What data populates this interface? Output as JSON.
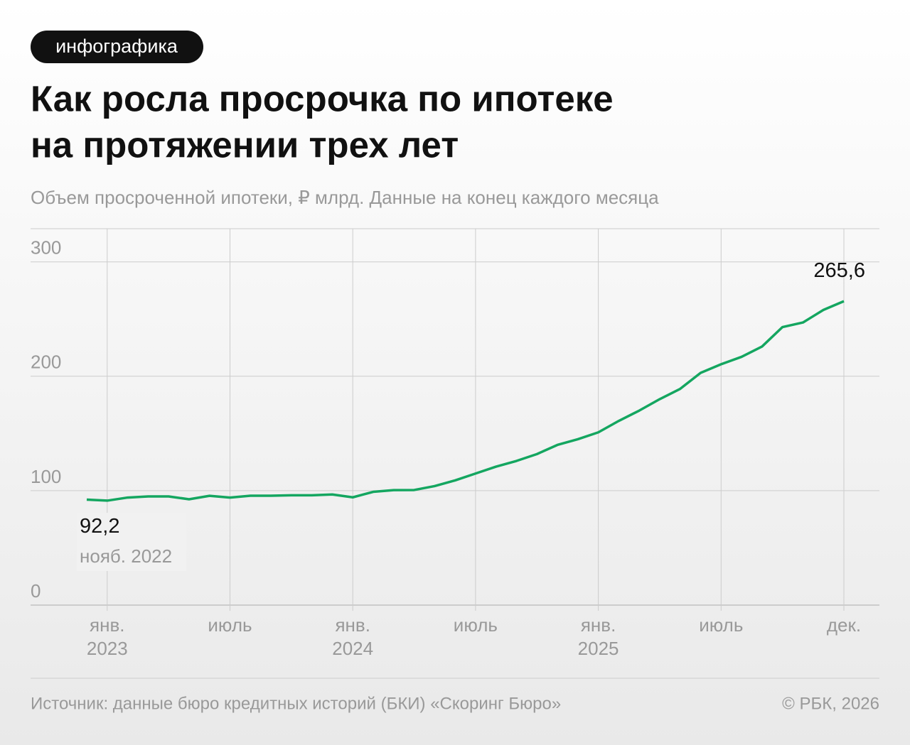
{
  "badge": "инфографика",
  "chart_data": {
    "type": "line",
    "title": [
      "Как росла просрочка по ипотеке",
      "на протяжении трех лет"
    ],
    "subtitle": "Объем просроченной ипотеки, ₽ млрд. Данные на конец каждого месяца",
    "categories": [
      null,
      "янв. 2023",
      null,
      null,
      null,
      null,
      null,
      "июль",
      null,
      null,
      null,
      null,
      null,
      "янв. 2024",
      null,
      null,
      null,
      null,
      null,
      "июль",
      null,
      null,
      null,
      null,
      null,
      "янв. 2025",
      null,
      null,
      null,
      null,
      null,
      "июль",
      null,
      null,
      null,
      null,
      null,
      "дек."
    ],
    "series": [
      {
        "color": "#14a660",
        "values": [
          92.2,
          91.3,
          94,
          95,
          95,
          92.5,
          95.5,
          94,
          95.6,
          95.6,
          96,
          96,
          96.7,
          94.2,
          99,
          100.5,
          100.6,
          104,
          109,
          115,
          121,
          126,
          132,
          140,
          145,
          151,
          161,
          170,
          180,
          189,
          203,
          210.5,
          217,
          226,
          243,
          247,
          258,
          265.6
        ],
        "value_labels": [
          "92,2",
          null,
          null,
          null,
          null,
          null,
          null,
          null,
          null,
          null,
          null,
          null,
          null,
          null,
          null,
          null,
          null,
          null,
          null,
          null,
          null,
          null,
          null,
          null,
          null,
          null,
          null,
          null,
          null,
          null,
          null,
          null,
          null,
          null,
          null,
          null,
          null,
          "265,6"
        ]
      }
    ],
    "start_date_label": "нояб. 2022",
    "ylim": [
      0,
      329
    ],
    "yticks": [
      0,
      100,
      200,
      300
    ],
    "grid": true
  },
  "footer": {
    "source": "Источник: данные бюро кредитных историй (БКИ) «Скоринг Бюро»",
    "copyright": "© РБК, 2026"
  }
}
